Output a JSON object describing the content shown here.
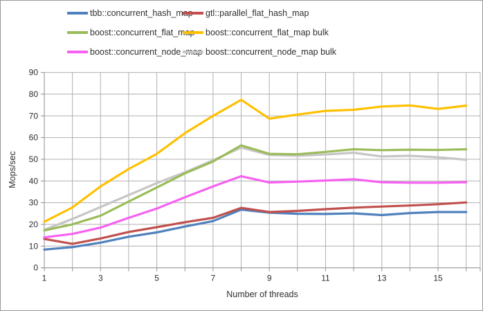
{
  "chart_data": {
    "type": "line",
    "title": "",
    "xlabel": "Number of threads",
    "ylabel": "Mops/sec",
    "x": [
      1,
      2,
      3,
      4,
      5,
      6,
      7,
      8,
      9,
      10,
      11,
      12,
      13,
      14,
      15,
      16
    ],
    "xlim": [
      1,
      16.5
    ],
    "ylim": [
      0,
      90
    ],
    "x_tick_labels": [
      1,
      3,
      5,
      7,
      9,
      11,
      13,
      15
    ],
    "y_tick_labels": [
      0,
      10,
      20,
      30,
      40,
      50,
      60,
      70,
      80,
      90
    ],
    "grid": true,
    "legend_position": "top",
    "series": [
      {
        "name": "tbb::concurrent_hash_map",
        "color": "#4F81BD",
        "values": [
          8.4,
          9.5,
          11.6,
          14.3,
          16.3,
          19.0,
          21.5,
          26.8,
          25.4,
          24.9,
          24.8,
          25.1,
          24.3,
          25.2,
          25.7,
          25.7
        ]
      },
      {
        "name": "gtl::parallel_flat_hash_map",
        "color": "#C0504D",
        "values": [
          13.3,
          11.0,
          13.5,
          16.5,
          18.7,
          21.0,
          23.0,
          27.6,
          25.7,
          26.2,
          27.0,
          27.7,
          28.2,
          28.7,
          29.3,
          30.1
        ]
      },
      {
        "name": "boost::concurrent_flat_map",
        "color": "#9BBB59",
        "values": [
          17.2,
          20.0,
          24.0,
          30.5,
          37.0,
          43.5,
          49.0,
          56.4,
          52.5,
          52.3,
          53.4,
          54.6,
          54.2,
          54.4,
          54.3,
          54.6
        ]
      },
      {
        "name": "boost::concurrent_flat_map bulk",
        "color": "#FFC000",
        "values": [
          21.2,
          27.8,
          37.5,
          45.5,
          52.5,
          62.0,
          70.0,
          77.4,
          68.7,
          70.6,
          72.3,
          72.8,
          74.3,
          74.8,
          73.2,
          74.7
        ]
      },
      {
        "name": "boost::concurrent_node_map",
        "color": "#F661F1",
        "values": [
          14.0,
          15.6,
          18.5,
          23.0,
          27.3,
          32.5,
          37.5,
          42.2,
          39.3,
          39.7,
          40.2,
          40.8,
          39.4,
          39.2,
          39.2,
          39.4
        ]
      },
      {
        "name": "boost::concurrent_node_map bulk",
        "color": "#C6C6C6",
        "values": [
          17.5,
          22.5,
          28.0,
          33.5,
          39.0,
          44.0,
          49.5,
          55.4,
          52.0,
          51.6,
          52.2,
          53.0,
          51.3,
          51.6,
          50.9,
          49.8
        ]
      }
    ]
  },
  "colors": {
    "grid": "#AFAFAF",
    "axis": "#8C8C8C",
    "tick_text": "#2E2E2E",
    "border": "#979797",
    "background": "#FFFFFF"
  }
}
